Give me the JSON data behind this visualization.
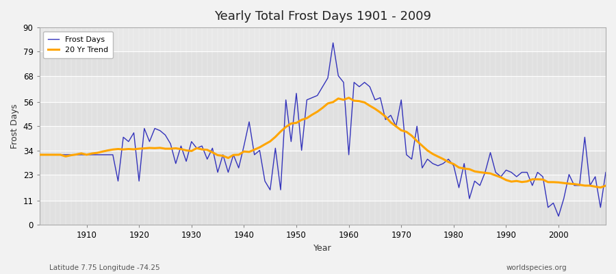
{
  "title": "Yearly Total Frost Days 1901 - 2009",
  "xlabel": "Year",
  "ylabel": "Frost Days",
  "subtitle_left": "Latitude 7.75 Longitude -74.25",
  "subtitle_right": "worldspecies.org",
  "years": [
    1901,
    1902,
    1903,
    1904,
    1905,
    1906,
    1907,
    1908,
    1909,
    1910,
    1911,
    1912,
    1913,
    1914,
    1915,
    1916,
    1917,
    1918,
    1919,
    1920,
    1921,
    1922,
    1923,
    1924,
    1925,
    1926,
    1927,
    1928,
    1929,
    1930,
    1931,
    1932,
    1933,
    1934,
    1935,
    1936,
    1937,
    1938,
    1939,
    1940,
    1941,
    1942,
    1943,
    1944,
    1945,
    1946,
    1947,
    1948,
    1949,
    1950,
    1951,
    1952,
    1953,
    1954,
    1955,
    1956,
    1957,
    1958,
    1959,
    1960,
    1961,
    1962,
    1963,
    1964,
    1965,
    1966,
    1967,
    1968,
    1969,
    1970,
    1971,
    1972,
    1973,
    1974,
    1975,
    1976,
    1977,
    1978,
    1979,
    1980,
    1981,
    1982,
    1983,
    1984,
    1985,
    1986,
    1987,
    1988,
    1989,
    1990,
    1991,
    1992,
    1993,
    1994,
    1995,
    1996,
    1997,
    1998,
    1999,
    2000,
    2001,
    2002,
    2003,
    2004,
    2005,
    2006,
    2007,
    2008,
    2009
  ],
  "frost_days": [
    32,
    32,
    32,
    32,
    32,
    32,
    32,
    32,
    32,
    32,
    32,
    32,
    32,
    32,
    32,
    20,
    40,
    38,
    42,
    20,
    44,
    38,
    44,
    43,
    41,
    37,
    28,
    36,
    29,
    38,
    35,
    36,
    30,
    35,
    24,
    32,
    24,
    32,
    26,
    36,
    47,
    32,
    34,
    20,
    16,
    35,
    16,
    57,
    38,
    60,
    34,
    57,
    58,
    59,
    63,
    67,
    83,
    68,
    65,
    32,
    65,
    63,
    65,
    63,
    57,
    58,
    48,
    50,
    45,
    57,
    32,
    30,
    45,
    26,
    30,
    28,
    27,
    28,
    30,
    27,
    17,
    28,
    12,
    20,
    18,
    24,
    33,
    24,
    22,
    25,
    24,
    22,
    24,
    24,
    18,
    24,
    22,
    8,
    10,
    4,
    12,
    23,
    18,
    18,
    40,
    18,
    22,
    8,
    24
  ],
  "line_color": "#3333bb",
  "trend_color": "#FFA500",
  "fig_bg_color": "#f2f2f2",
  "plot_bg_color": "#e8e8e8",
  "yticks": [
    0,
    11,
    23,
    34,
    45,
    56,
    68,
    79,
    90
  ],
  "band_colors": [
    "#e0e0e0",
    "#e8e8e8"
  ],
  "ylim": [
    0,
    90
  ],
  "xlim": [
    1901,
    2009
  ]
}
